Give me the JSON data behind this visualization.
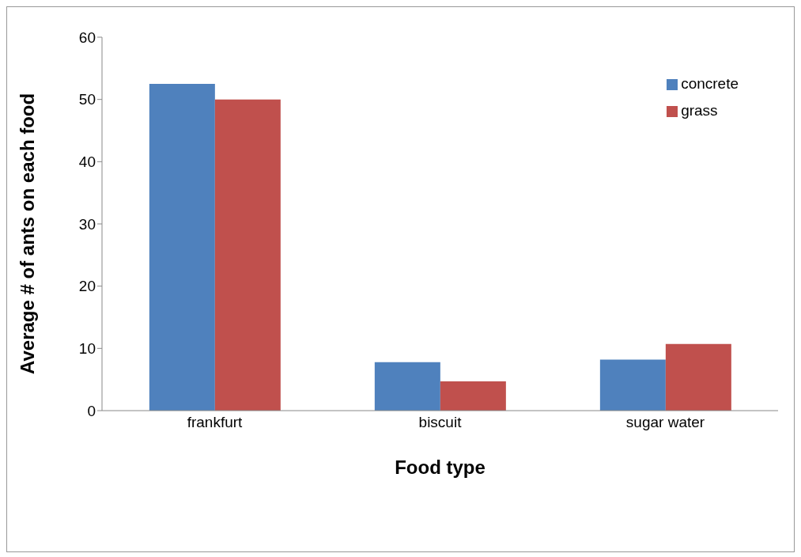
{
  "chart_data": {
    "type": "bar",
    "xlabel": "Food type",
    "ylabel": "Average # of ants on each food",
    "categories": [
      "frankfurt",
      "biscuit",
      "sugar water"
    ],
    "series": [
      {
        "name": "concrete",
        "color": "#4f81bd",
        "values": [
          52.5,
          7.8,
          8.2
        ]
      },
      {
        "name": "grass",
        "color": "#c0504d",
        "values": [
          50.0,
          4.7,
          10.7
        ]
      }
    ],
    "ylim": [
      0,
      60
    ],
    "yticks": [
      0,
      10,
      20,
      30,
      40,
      50,
      60
    ],
    "grid": false,
    "legend": "top right"
  }
}
